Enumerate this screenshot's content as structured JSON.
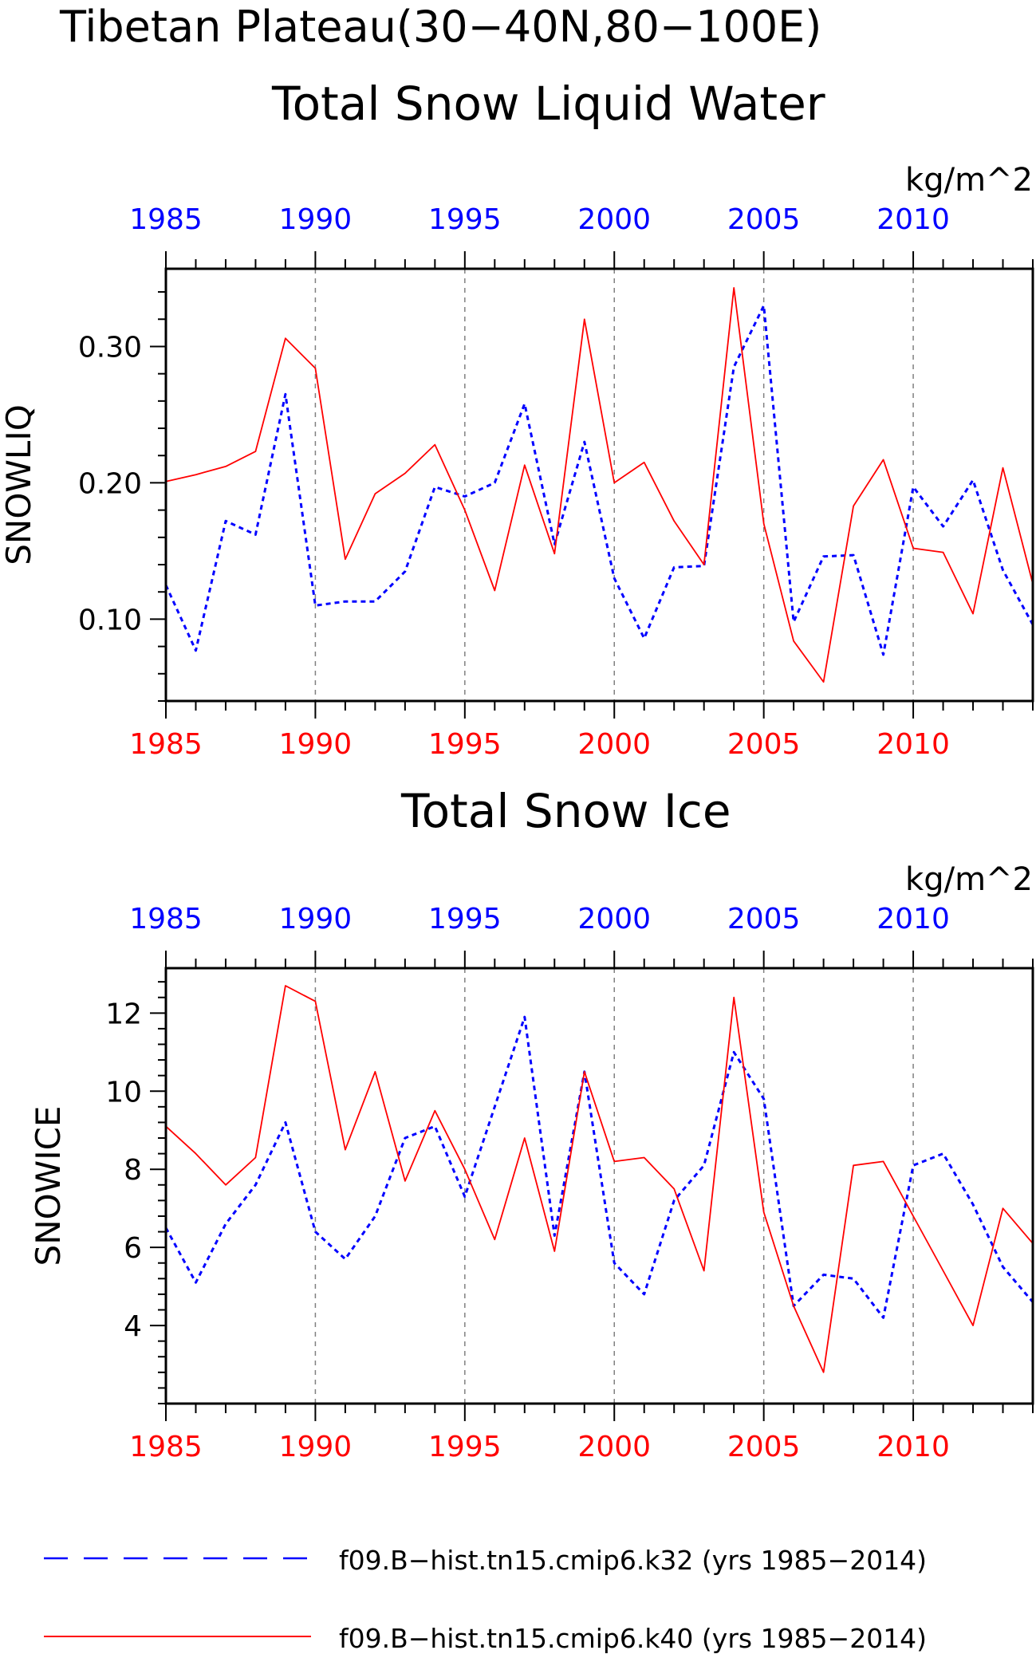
{
  "titles": {
    "main": "Tibetan Plateau(30−40N,80−100E)",
    "panel1": "Total Snow Liquid Water",
    "panel2": "Total Snow Ice"
  },
  "colors": {
    "k32": "#0000ff",
    "k40": "#ff0000",
    "axis": "#000000",
    "grid": "#808080"
  },
  "legend": {
    "k32": "f09.B−hist.tn15.cmip6.k32 (yrs 1985−2014)",
    "k40": "f09.B−hist.tn15.cmip6.k40 (yrs 1985−2014)"
  },
  "chart_data": [
    {
      "type": "line",
      "title": "Total Snow Liquid Water",
      "units": "kg/m^2",
      "ylabel": "SNOWLIQ",
      "xlabel": "",
      "x": [
        1985,
        1986,
        1987,
        1988,
        1989,
        1990,
        1991,
        1992,
        1993,
        1994,
        1995,
        1996,
        1997,
        1998,
        1999,
        2000,
        2001,
        2002,
        2003,
        2004,
        2005,
        2006,
        2007,
        2008,
        2009,
        2010,
        2011,
        2012,
        2013,
        2014
      ],
      "xlim": [
        1985,
        2014
      ],
      "ylim": [
        0.04,
        0.357
      ],
      "xticks": [
        1985,
        1990,
        1995,
        2000,
        2005,
        2010
      ],
      "yticks": [
        0.1,
        0.2,
        0.3
      ],
      "ytick_labels": [
        "0.10",
        "0.20",
        "0.30"
      ],
      "grid": "vertical dashed at labeled years",
      "series": [
        {
          "name": "f09.B−hist.tn15.cmip6.k32 (yrs 1985−2014)",
          "axis": "top",
          "style": "dashed",
          "color": "#0000ff",
          "values": [
            0.125,
            0.077,
            0.172,
            0.162,
            0.265,
            0.11,
            0.113,
            0.113,
            0.135,
            0.197,
            0.19,
            0.2,
            0.258,
            0.155,
            0.23,
            0.13,
            0.086,
            0.138,
            0.139,
            0.285,
            0.33,
            0.098,
            0.146,
            0.147,
            0.074,
            0.197,
            0.168,
            0.202,
            0.136,
            0.096
          ]
        },
        {
          "name": "f09.B−hist.tn15.cmip6.k40 (yrs 1985−2014)",
          "axis": "bottom",
          "style": "solid",
          "color": "#ff0000",
          "values": [
            0.201,
            0.206,
            0.212,
            0.223,
            0.306,
            0.284,
            0.144,
            0.192,
            0.207,
            0.228,
            0.18,
            0.121,
            0.213,
            0.148,
            0.32,
            0.2,
            0.215,
            0.172,
            0.14,
            0.343,
            0.17,
            0.084,
            0.054,
            0.183,
            0.217,
            0.152,
            0.149,
            0.104,
            0.211,
            0.126
          ]
        }
      ]
    },
    {
      "type": "line",
      "title": "Total Snow Ice",
      "units": "kg/m^2",
      "ylabel": "SNOWICE",
      "xlabel": "",
      "x": [
        1985,
        1986,
        1987,
        1988,
        1989,
        1990,
        1991,
        1992,
        1993,
        1994,
        1995,
        1996,
        1997,
        1998,
        1999,
        2000,
        2001,
        2002,
        2003,
        2004,
        2005,
        2006,
        2007,
        2008,
        2009,
        2010,
        2011,
        2012,
        2013,
        2014
      ],
      "xlim": [
        1985,
        2014
      ],
      "ylim": [
        2.0,
        13.15
      ],
      "xticks": [
        1985,
        1990,
        1995,
        2000,
        2005,
        2010
      ],
      "yticks": [
        4,
        6,
        8,
        10,
        12
      ],
      "ytick_labels": [
        "4",
        "6",
        "8",
        "10",
        "12"
      ],
      "grid": "vertical dashed at labeled years",
      "series": [
        {
          "name": "f09.B−hist.tn15.cmip6.k32 (yrs 1985−2014)",
          "axis": "top",
          "style": "dashed",
          "color": "#0000ff",
          "values": [
            6.5,
            5.1,
            6.6,
            7.6,
            9.2,
            6.4,
            5.7,
            6.8,
            8.8,
            9.1,
            7.3,
            9.6,
            11.9,
            6.3,
            10.5,
            5.6,
            4.8,
            7.2,
            8.1,
            11.0,
            9.8,
            4.5,
            5.3,
            5.2,
            4.2,
            8.1,
            8.4,
            7.1,
            5.5,
            4.6
          ]
        },
        {
          "name": "f09.B−hist.tn15.cmip6.k40 (yrs 1985−2014)",
          "axis": "bottom",
          "style": "solid",
          "color": "#ff0000",
          "values": [
            9.1,
            8.4,
            7.6,
            8.3,
            12.7,
            12.3,
            8.5,
            10.5,
            7.7,
            9.5,
            8.0,
            6.2,
            8.8,
            5.9,
            10.5,
            8.2,
            8.3,
            7.5,
            5.4,
            12.4,
            6.9,
            4.5,
            2.8,
            8.1,
            8.2,
            6.8,
            5.4,
            4.0,
            7.0,
            6.1
          ]
        }
      ]
    }
  ]
}
